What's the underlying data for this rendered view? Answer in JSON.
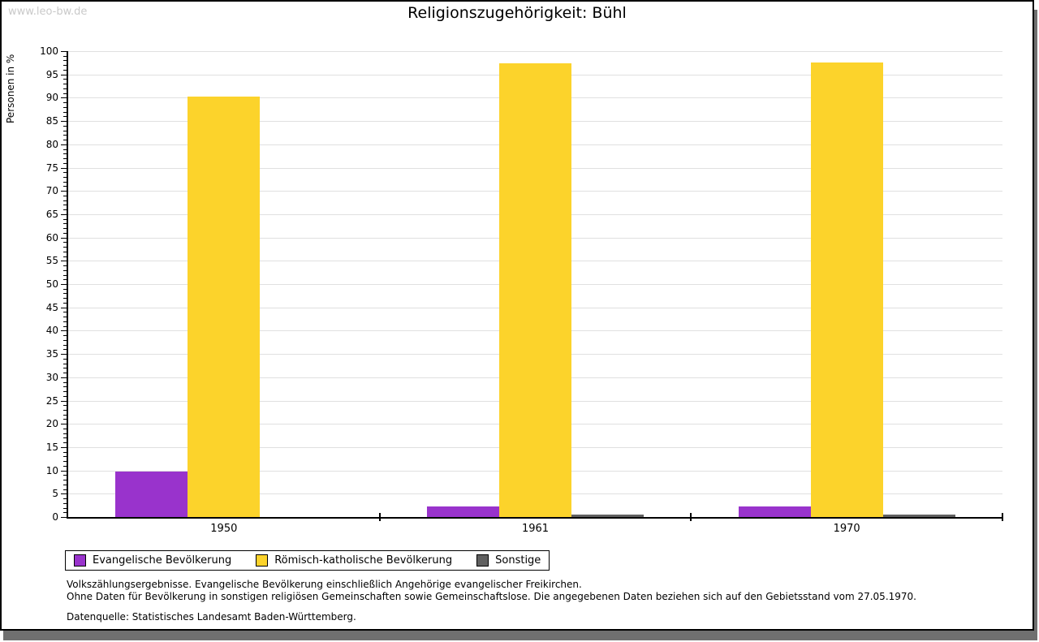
{
  "watermark": "www.leo-bw.de",
  "title": "Religionszugehörigkeit: Bühl",
  "chart_data": {
    "type": "bar",
    "title": "Religionszugehörigkeit: Bühl",
    "ylabel": "Personen in %",
    "xlabel": "",
    "categories": [
      "1950",
      "1961",
      "1970"
    ],
    "series": [
      {
        "key": "evangelische",
        "name": "Evangelische Bevölkerung",
        "color": "#9933CC",
        "values": [
          9.8,
          2.3,
          2.3
        ]
      },
      {
        "key": "katholische",
        "name": "Römisch-katholische Bevölkerung",
        "color": "#FCD32B",
        "values": [
          90.2,
          97.4,
          97.5
        ]
      },
      {
        "key": "sonstige",
        "name": "Sonstige",
        "color": "#606060",
        "values": [
          0,
          0.5,
          0.5
        ]
      }
    ],
    "ylim": [
      0,
      100
    ],
    "ytick_step": 5,
    "yminor_step": 1,
    "yticks": [
      0,
      5,
      10,
      15,
      20,
      25,
      30,
      35,
      40,
      45,
      50,
      55,
      60,
      65,
      70,
      75,
      80,
      85,
      90,
      95,
      100
    ],
    "grid": true,
    "legend_position": "bottom-left"
  },
  "footnotes": {
    "line1": "Volkszählungsergebnisse. Evangelische Bevölkerung einschließlich Angehörige evangelischer Freikirchen.",
    "line2": "Ohne Daten für Bevölkerung in sonstigen religiösen Gemeinschaften sowie Gemeinschaftslose. Die angegebenen Daten beziehen sich auf den Gebietsstand vom 27.05.1970.",
    "source": "Datenquelle: Statistisches Landesamt Baden-Württemberg."
  },
  "colors": {
    "grid": "#E0E0E0",
    "axis": "#000000",
    "watermark": "#C9C9C9",
    "shadow": "#707070"
  }
}
